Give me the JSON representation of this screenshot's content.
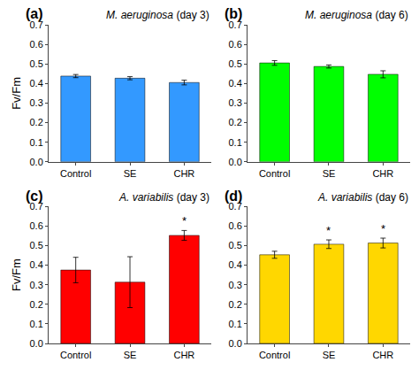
{
  "chart_data": [
    {
      "type": "bar",
      "title": "M. aeruginosa (day 3)",
      "annotations": [
        "(a)"
      ],
      "ylabel": "Fv/Fm",
      "categories": [
        "Control",
        "SE",
        "CHR"
      ],
      "values": [
        0.438,
        0.427,
        0.405
      ],
      "errors": [
        0.008,
        0.008,
        0.012
      ],
      "significance": [
        null,
        null,
        null
      ],
      "color": "#3399FF",
      "ylim": [
        0,
        0.7
      ],
      "yticks": [
        {
          "value": 0.0,
          "label": "0.0"
        },
        0.1,
        0.2,
        0.3,
        0.4,
        0.5,
        0.6,
        0.7
      ],
      "grid": false
    },
    {
      "type": "bar",
      "title": "M. aeruginosa (day 6)",
      "annotations": [
        "(b)"
      ],
      "categories": [
        "Control",
        "SE",
        "CHR"
      ],
      "values": [
        0.505,
        0.487,
        0.447
      ],
      "errors": [
        0.012,
        0.008,
        0.018
      ],
      "significance": [
        null,
        null,
        null
      ],
      "color": "#00FF00",
      "ylim": [
        0,
        0.7
      ],
      "yticks": [
        {
          "value": 0.0,
          "label": "0.0"
        },
        0.1,
        0.2,
        0.3,
        0.4,
        0.5,
        0.6,
        0.7
      ],
      "grid": false
    },
    {
      "type": "bar",
      "title": "A. variabilis (day 3)",
      "annotations": [
        "(c)"
      ],
      "ylabel": "Fv/Fm",
      "categories": [
        "Control",
        "SE",
        "CHR"
      ],
      "values": [
        0.375,
        0.313,
        0.552
      ],
      "errors": [
        0.065,
        0.13,
        0.025
      ],
      "significance": [
        null,
        null,
        "*"
      ],
      "color": "#FF0000",
      "ylim": [
        0,
        0.7
      ],
      "yticks": [
        {
          "value": 0.0,
          "label": "0.0"
        },
        0.1,
        0.2,
        0.3,
        0.4,
        0.5,
        0.6,
        0.7
      ],
      "grid": false
    },
    {
      "type": "bar",
      "title": "A. variabilis (day 6)",
      "annotations": [
        "(d)"
      ],
      "categories": [
        "Control",
        "SE",
        "CHR"
      ],
      "values": [
        0.453,
        0.507,
        0.513
      ],
      "errors": [
        0.018,
        0.022,
        0.025
      ],
      "significance": [
        null,
        "*",
        "*"
      ],
      "color": "#FFD700",
      "ylim": [
        0,
        0.7
      ],
      "yticks": [
        {
          "value": 0.0,
          "label": "0.0"
        },
        0.1,
        0.2,
        0.3,
        0.4,
        0.5,
        0.6,
        0.7
      ],
      "grid": false
    }
  ]
}
